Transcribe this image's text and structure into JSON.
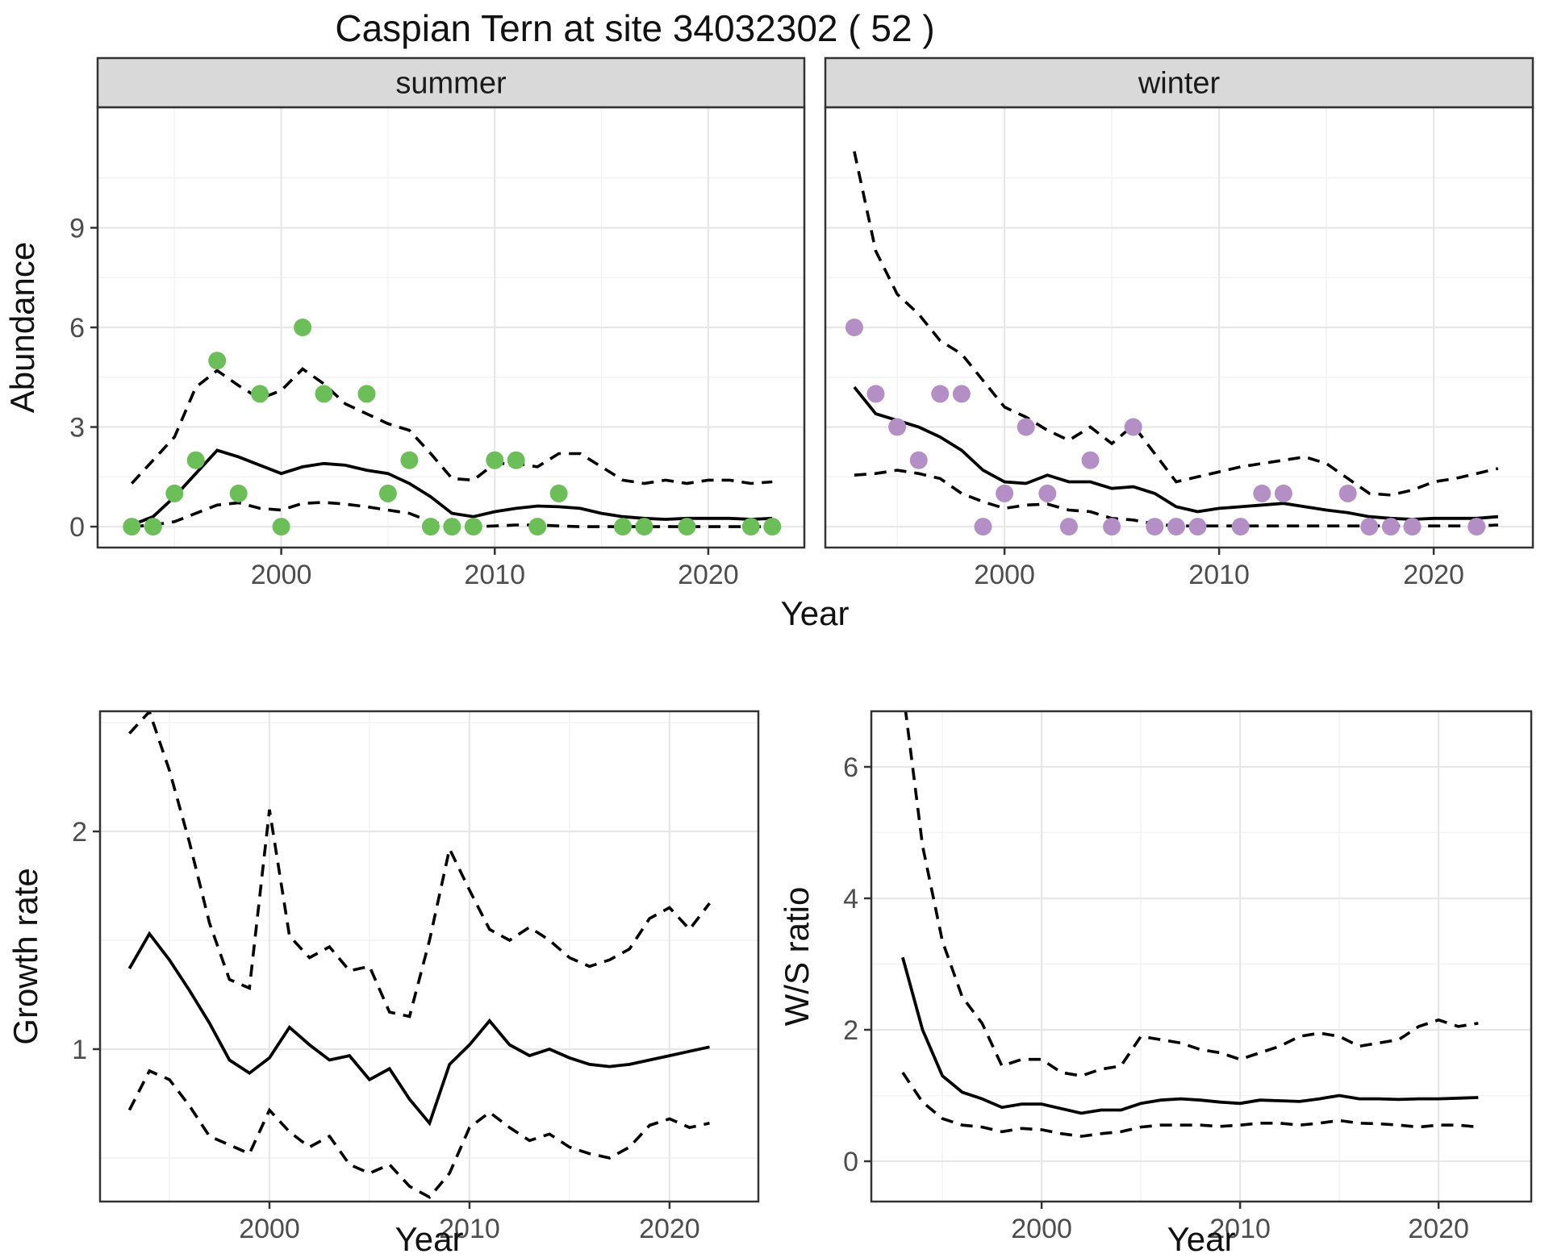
{
  "chart_data": {
    "type": "line",
    "title": "Caspian Tern at site 34032302 ( 52 )",
    "shared_x_label": "Year",
    "facets": [
      "summer",
      "winter"
    ],
    "style": {
      "summer_point_color": "#6CBE59",
      "winter_point_color": "#B48FC6",
      "line_color": "#000000",
      "strip_bg": "#D9D9D9",
      "strip_text_color": "#1A1A1A",
      "panel_border": "#333333",
      "grid_major": "#E7E7E7",
      "grid_minor": "#F2F2F2",
      "tick_color": "#333333",
      "tick_label_color": "#4D4D4D",
      "background": "#FFFFFF"
    },
    "panels": [
      {
        "key": "abundance_summer",
        "facet": "summer",
        "ylabel": "Abundance",
        "xlabel": "Year",
        "x_ticks": [
          2000,
          2010,
          2020
        ],
        "x_minor": [
          1995,
          2005,
          2015
        ],
        "y_ticks": [
          0,
          3,
          6,
          9
        ],
        "y_minor": [
          1.5,
          4.5,
          7.5,
          10.5
        ],
        "xlim": [
          1991.4,
          2024.5
        ],
        "ylim": [
          -0.63,
          12.63
        ],
        "show_y_labels": true,
        "point_color": "#6CBE59",
        "points": {
          "years": [
            1993,
            1994,
            1995,
            1996,
            1997,
            1998,
            1999,
            2000,
            2001,
            2002,
            2004,
            2005,
            2006,
            2007,
            2008,
            2009,
            2010,
            2011,
            2012,
            2013,
            2016,
            2017,
            2019,
            2022,
            2023
          ],
          "values": [
            0,
            0,
            1,
            2,
            5,
            1,
            4,
            0,
            6,
            4,
            4,
            1,
            2,
            0,
            0,
            0,
            2,
            2,
            0,
            1,
            0,
            0,
            0,
            0,
            0
          ]
        },
        "line_years": [
          1993,
          1994,
          1995,
          1996,
          1997,
          1998,
          1999,
          2000,
          2001,
          2002,
          2003,
          2004,
          2005,
          2006,
          2007,
          2008,
          2009,
          2010,
          2011,
          2012,
          2013,
          2014,
          2015,
          2016,
          2017,
          2018,
          2019,
          2020,
          2021,
          2022,
          2023
        ],
        "median": [
          0.05,
          0.3,
          0.9,
          1.6,
          2.3,
          2.1,
          1.85,
          1.6,
          1.8,
          1.9,
          1.85,
          1.7,
          1.6,
          1.3,
          0.9,
          0.4,
          0.3,
          0.45,
          0.55,
          0.62,
          0.6,
          0.55,
          0.4,
          0.3,
          0.25,
          0.22,
          0.25,
          0.25,
          0.25,
          0.22,
          0.25
        ],
        "upper": [
          1.3,
          2.0,
          2.7,
          4.2,
          4.7,
          4.25,
          3.85,
          4.1,
          4.75,
          4.3,
          3.7,
          3.4,
          3.1,
          2.9,
          2.2,
          1.45,
          1.4,
          1.9,
          1.9,
          1.8,
          2.2,
          2.2,
          1.8,
          1.4,
          1.3,
          1.4,
          1.3,
          1.4,
          1.4,
          1.3,
          1.35
        ],
        "lower": [
          0.0,
          0.05,
          0.15,
          0.4,
          0.65,
          0.72,
          0.55,
          0.5,
          0.7,
          0.73,
          0.68,
          0.6,
          0.5,
          0.4,
          0.15,
          0.02,
          0.0,
          0.02,
          0.05,
          0.05,
          0.02,
          0.0,
          0.0,
          0.0,
          0.0,
          0.0,
          0.0,
          0.0,
          0.0,
          0.0,
          0.0
        ]
      },
      {
        "key": "abundance_winter",
        "facet": "winter",
        "ylabel": "Abundance",
        "xlabel": "Year",
        "x_ticks": [
          2000,
          2010,
          2020
        ],
        "x_minor": [
          1995,
          2005,
          2015
        ],
        "y_ticks": [
          0,
          3,
          6,
          9
        ],
        "y_minor": [
          1.5,
          4.5,
          7.5,
          10.5
        ],
        "xlim": [
          1991.65,
          2024.62
        ],
        "ylim": [
          -0.63,
          12.63
        ],
        "show_y_labels": false,
        "point_color": "#B48FC6",
        "points": {
          "years": [
            1993,
            1994,
            1995,
            1996,
            1997,
            1998,
            1999,
            2000,
            2001,
            2002,
            2003,
            2004,
            2005,
            2006,
            2007,
            2008,
            2009,
            2011,
            2012,
            2013,
            2016,
            2017,
            2018,
            2019,
            2022
          ],
          "values": [
            6,
            4,
            3,
            2,
            4,
            4,
            0,
            1,
            3,
            1,
            0,
            2,
            0,
            3,
            0,
            0,
            0,
            0,
            1,
            1,
            1,
            0,
            0,
            0,
            0
          ]
        },
        "line_years": [
          1993,
          1994,
          1995,
          1996,
          1997,
          1998,
          1999,
          2000,
          2001,
          2002,
          2003,
          2004,
          2005,
          2006,
          2007,
          2008,
          2009,
          2010,
          2011,
          2012,
          2013,
          2014,
          2015,
          2016,
          2017,
          2018,
          2019,
          2020,
          2021,
          2022,
          2023
        ],
        "median": [
          4.2,
          3.4,
          3.2,
          3.0,
          2.7,
          2.3,
          1.7,
          1.35,
          1.3,
          1.55,
          1.35,
          1.35,
          1.15,
          1.2,
          1.0,
          0.6,
          0.45,
          0.55,
          0.6,
          0.65,
          0.7,
          0.6,
          0.5,
          0.42,
          0.3,
          0.25,
          0.22,
          0.25,
          0.25,
          0.25,
          0.3
        ],
        "upper": [
          11.3,
          8.3,
          7.0,
          6.4,
          5.6,
          5.2,
          4.4,
          3.6,
          3.3,
          2.9,
          2.6,
          3.0,
          2.5,
          3.05,
          2.2,
          1.35,
          1.5,
          1.65,
          1.8,
          1.9,
          2.0,
          2.1,
          1.9,
          1.45,
          1.0,
          0.95,
          1.1,
          1.35,
          1.45,
          1.6,
          1.75
        ],
        "lower": [
          1.55,
          1.6,
          1.7,
          1.6,
          1.45,
          1.0,
          0.75,
          0.55,
          0.65,
          0.68,
          0.5,
          0.45,
          0.25,
          0.2,
          0.08,
          0.02,
          0.02,
          0.02,
          0.02,
          0.02,
          0.02,
          0.02,
          0.02,
          0.02,
          0.02,
          0.02,
          0.02,
          0.02,
          0.02,
          0.02,
          0.05
        ]
      },
      {
        "key": "growth_rate",
        "facet": null,
        "ylabel": "Growth rate",
        "xlabel": "Year",
        "x_ticks": [
          2000,
          2010,
          2020
        ],
        "x_minor": [
          1995,
          2005,
          2015
        ],
        "y_ticks": [
          1,
          2
        ],
        "y_minor": [
          0.5,
          1.5,
          2.5
        ],
        "xlim": [
          1991.53,
          2024.44
        ],
        "ylim": [
          0.3,
          2.552
        ],
        "show_y_labels": true,
        "point_color": null,
        "points": null,
        "line_years": [
          1993,
          1994,
          1995,
          1996,
          1997,
          1998,
          1999,
          2000,
          2001,
          2002,
          2003,
          2004,
          2005,
          2006,
          2007,
          2008,
          2009,
          2010,
          2011,
          2012,
          2013,
          2014,
          2015,
          2016,
          2017,
          2018,
          2019,
          2020,
          2021,
          2022
        ],
        "median": [
          1.37,
          1.53,
          1.41,
          1.27,
          1.12,
          0.95,
          0.89,
          0.96,
          1.1,
          1.02,
          0.95,
          0.97,
          0.86,
          0.91,
          0.77,
          0.66,
          0.93,
          1.02,
          1.13,
          1.02,
          0.97,
          1.0,
          0.96,
          0.93,
          0.92,
          0.93,
          0.95,
          0.97,
          0.99,
          1.01
        ],
        "upper": [
          2.45,
          2.55,
          2.28,
          1.95,
          1.58,
          1.32,
          1.28,
          2.1,
          1.52,
          1.42,
          1.47,
          1.36,
          1.38,
          1.17,
          1.15,
          1.5,
          1.92,
          1.73,
          1.55,
          1.5,
          1.56,
          1.5,
          1.42,
          1.38,
          1.41,
          1.46,
          1.6,
          1.65,
          1.55,
          1.67
        ],
        "lower": [
          0.72,
          0.9,
          0.86,
          0.74,
          0.6,
          0.56,
          0.52,
          0.72,
          0.62,
          0.55,
          0.6,
          0.47,
          0.43,
          0.47,
          0.37,
          0.32,
          0.43,
          0.64,
          0.71,
          0.64,
          0.58,
          0.61,
          0.55,
          0.52,
          0.5,
          0.55,
          0.65,
          0.68,
          0.64,
          0.66
        ]
      },
      {
        "key": "ws_ratio",
        "facet": null,
        "ylabel": "W/S ratio",
        "xlabel": "Year",
        "x_ticks": [
          2000,
          2010,
          2020
        ],
        "x_minor": [
          1995,
          2005,
          2015
        ],
        "y_ticks": [
          0,
          2,
          4,
          6
        ],
        "y_minor": [
          1,
          3,
          5
        ],
        "xlim": [
          1991.42,
          2024.67
        ],
        "ylim": [
          -0.613,
          6.846
        ],
        "show_y_labels": true,
        "point_color": null,
        "points": null,
        "line_years": [
          1993,
          1994,
          1995,
          1996,
          1997,
          1998,
          1999,
          2000,
          2001,
          2002,
          2003,
          2004,
          2005,
          2006,
          2007,
          2008,
          2009,
          2010,
          2011,
          2012,
          2013,
          2014,
          2015,
          2016,
          2017,
          2018,
          2019,
          2020,
          2021,
          2022
        ],
        "median": [
          3.1,
          2.0,
          1.3,
          1.05,
          0.95,
          0.82,
          0.87,
          0.87,
          0.8,
          0.73,
          0.78,
          0.78,
          0.88,
          0.93,
          0.95,
          0.93,
          0.9,
          0.88,
          0.93,
          0.92,
          0.91,
          0.95,
          1.0,
          0.95,
          0.95,
          0.94,
          0.95,
          0.95,
          0.96,
          0.97
        ],
        "upper": [
          7.2,
          4.8,
          3.35,
          2.5,
          2.1,
          1.45,
          1.55,
          1.55,
          1.35,
          1.3,
          1.4,
          1.45,
          1.9,
          1.85,
          1.8,
          1.7,
          1.65,
          1.55,
          1.65,
          1.75,
          1.9,
          1.95,
          1.9,
          1.75,
          1.8,
          1.85,
          2.05,
          2.15,
          2.05,
          2.1
        ],
        "lower": [
          1.35,
          0.9,
          0.65,
          0.55,
          0.52,
          0.45,
          0.5,
          0.48,
          0.42,
          0.38,
          0.42,
          0.45,
          0.52,
          0.55,
          0.55,
          0.55,
          0.53,
          0.55,
          0.58,
          0.58,
          0.55,
          0.58,
          0.62,
          0.58,
          0.57,
          0.55,
          0.52,
          0.55,
          0.55,
          0.52
        ]
      }
    ]
  }
}
